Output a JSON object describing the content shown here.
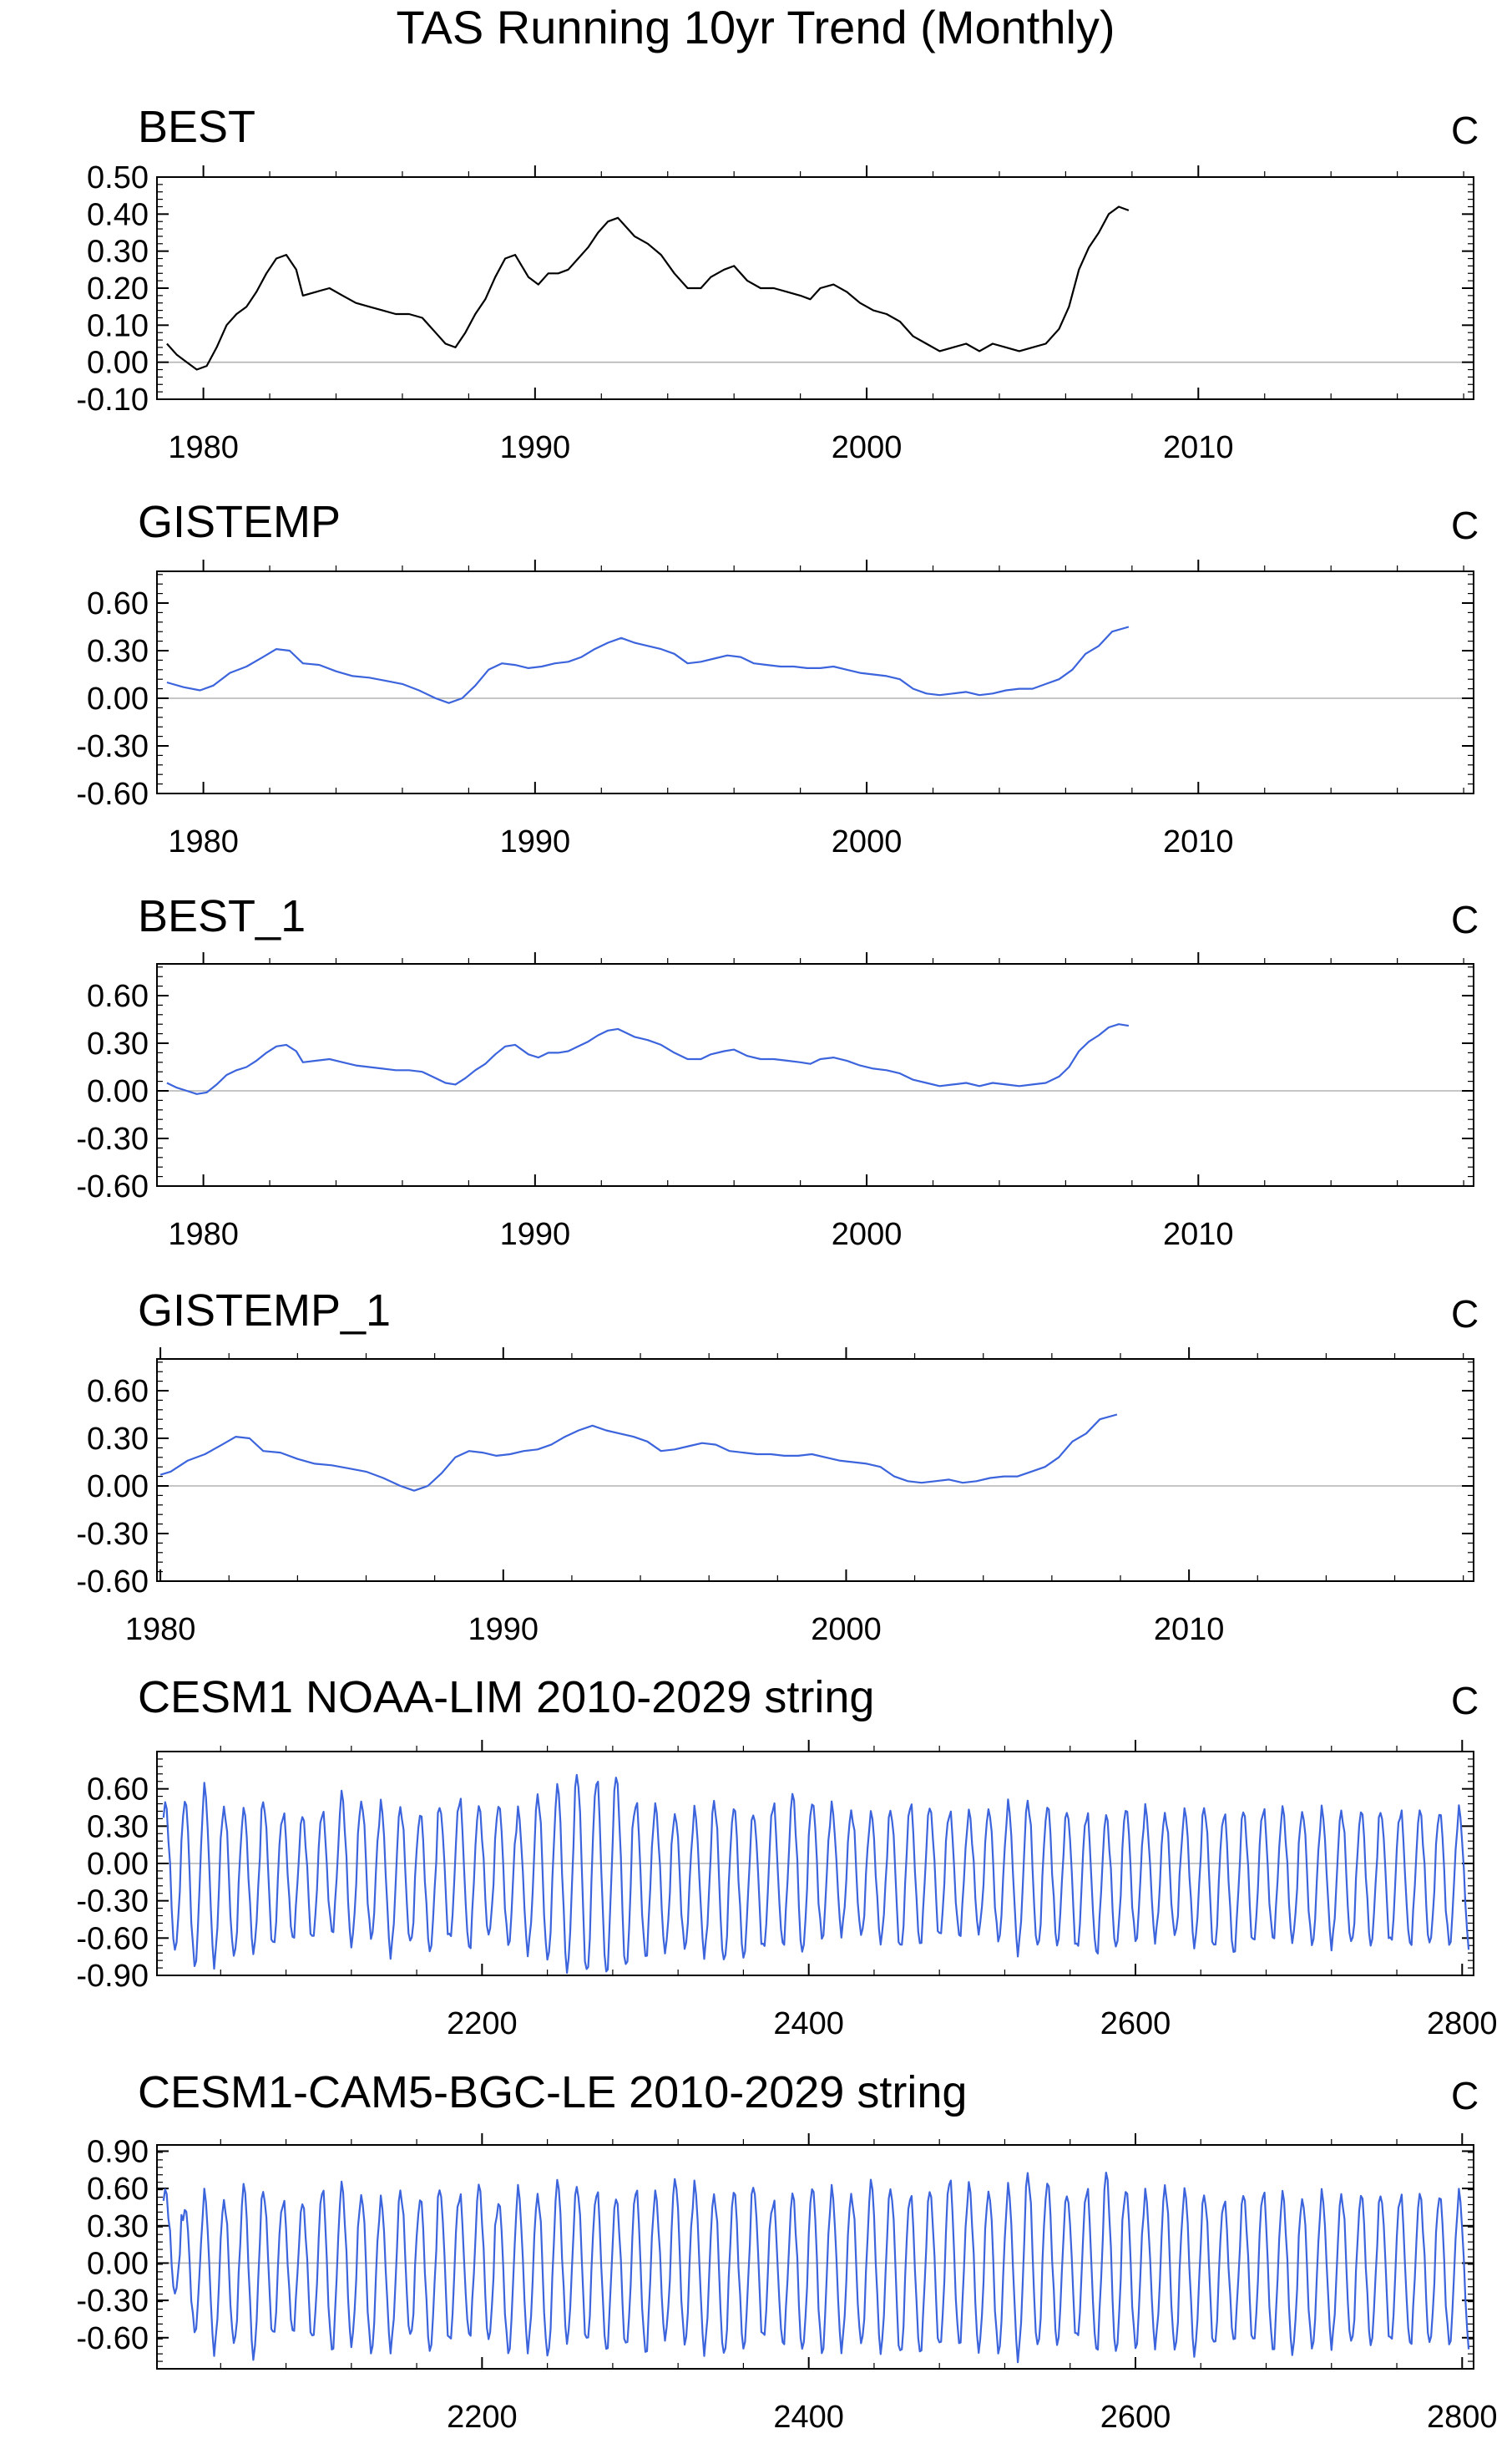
{
  "title": "TAS Running 10yr Trend (Monthly)",
  "chart_data": [
    {
      "type": "line",
      "title": "BEST",
      "units": "C",
      "color": "#000000",
      "xlim": [
        1978.6,
        2018.3
      ],
      "ylim": [
        -0.1,
        0.5
      ],
      "yticks": [
        "0.50",
        "0.40",
        "0.30",
        "0.20",
        "0.10",
        "0.00",
        "-0.10"
      ],
      "xticks": [
        "1980",
        "1990",
        "2000",
        "2010"
      ],
      "x": [
        1978.9,
        1979.2,
        1979.5,
        1979.8,
        1980.1,
        1980.4,
        1980.7,
        1981.0,
        1981.3,
        1981.6,
        1981.9,
        1982.2,
        1982.5,
        1982.8,
        1983.0,
        1983.4,
        1983.8,
        1984.2,
        1984.6,
        1985.0,
        1985.4,
        1985.8,
        1986.2,
        1986.6,
        1987.0,
        1987.3,
        1987.6,
        1987.9,
        1988.2,
        1988.5,
        1988.8,
        1989.1,
        1989.4,
        1989.8,
        1990.1,
        1990.4,
        1990.7,
        1991.0,
        1991.3,
        1991.6,
        1991.9,
        1992.2,
        1992.5,
        1992.8,
        1993.0,
        1993.4,
        1993.8,
        1994.2,
        1994.6,
        1995.0,
        1995.3,
        1995.7,
        1996.0,
        1996.4,
        1996.8,
        1997.2,
        1997.6,
        1998.0,
        1998.3,
        1998.6,
        1999.0,
        1999.4,
        1999.8,
        2000.2,
        2000.6,
        2001.0,
        2001.4,
        2001.8,
        2002.2,
        2002.6,
        2003.0,
        2003.4,
        2003.8,
        2004.2,
        2004.6,
        2005.0,
        2005.4,
        2005.8,
        2006.1,
        2006.4,
        2006.7,
        2007.0,
        2007.3,
        2007.6,
        2007.9
      ],
      "values": [
        0.05,
        0.02,
        0.0,
        -0.02,
        -0.01,
        0.04,
        0.1,
        0.13,
        0.15,
        0.19,
        0.24,
        0.28,
        0.29,
        0.25,
        0.18,
        0.19,
        0.2,
        0.18,
        0.16,
        0.15,
        0.14,
        0.13,
        0.13,
        0.12,
        0.08,
        0.05,
        0.04,
        0.08,
        0.13,
        0.17,
        0.23,
        0.28,
        0.29,
        0.23,
        0.21,
        0.24,
        0.24,
        0.25,
        0.28,
        0.31,
        0.35,
        0.38,
        0.39,
        0.36,
        0.34,
        0.32,
        0.29,
        0.24,
        0.2,
        0.2,
        0.23,
        0.25,
        0.26,
        0.22,
        0.2,
        0.2,
        0.19,
        0.18,
        0.17,
        0.2,
        0.21,
        0.19,
        0.16,
        0.14,
        0.13,
        0.11,
        0.07,
        0.05,
        0.03,
        0.04,
        0.05,
        0.03,
        0.05,
        0.04,
        0.03,
        0.04,
        0.05,
        0.09,
        0.15,
        0.25,
        0.31,
        0.35,
        0.4,
        0.42,
        0.41
      ]
    },
    {
      "type": "line",
      "title": "GISTEMP",
      "units": "C",
      "color": "#3c64dc",
      "xlim": [
        1978.6,
        2018.3
      ],
      "ylim": [
        -0.6,
        0.8
      ],
      "yticks": [
        "0.60",
        "0.30",
        "0.00",
        "-0.30",
        "-0.60"
      ],
      "xticks": [
        "1980",
        "1990",
        "2000",
        "2010"
      ],
      "x": [
        1978.9,
        1979.4,
        1979.9,
        1980.3,
        1980.8,
        1981.3,
        1981.8,
        1982.2,
        1982.6,
        1983.0,
        1983.5,
        1984.0,
        1984.5,
        1985.0,
        1985.5,
        1986.0,
        1986.5,
        1987.0,
        1987.4,
        1987.8,
        1988.2,
        1988.6,
        1989.0,
        1989.4,
        1989.8,
        1990.2,
        1990.6,
        1991.0,
        1991.4,
        1991.8,
        1992.2,
        1992.6,
        1993.0,
        1993.4,
        1993.8,
        1994.2,
        1994.6,
        1995.0,
        1995.4,
        1995.8,
        1996.2,
        1996.6,
        1997.0,
        1997.4,
        1997.8,
        1998.2,
        1998.6,
        1999.0,
        1999.4,
        1999.8,
        2000.2,
        2000.6,
        2001.0,
        2001.4,
        2001.8,
        2002.2,
        2002.6,
        2003.0,
        2003.4,
        2003.8,
        2004.2,
        2004.6,
        2005.0,
        2005.4,
        2005.8,
        2006.2,
        2006.6,
        2007.0,
        2007.4,
        2007.9
      ],
      "values": [
        0.1,
        0.07,
        0.05,
        0.08,
        0.16,
        0.2,
        0.26,
        0.31,
        0.3,
        0.22,
        0.21,
        0.17,
        0.14,
        0.13,
        0.11,
        0.09,
        0.05,
        0.0,
        -0.03,
        0.0,
        0.08,
        0.18,
        0.22,
        0.21,
        0.19,
        0.2,
        0.22,
        0.23,
        0.26,
        0.31,
        0.35,
        0.38,
        0.35,
        0.33,
        0.31,
        0.28,
        0.22,
        0.23,
        0.25,
        0.27,
        0.26,
        0.22,
        0.21,
        0.2,
        0.2,
        0.19,
        0.19,
        0.2,
        0.18,
        0.16,
        0.15,
        0.14,
        0.12,
        0.06,
        0.03,
        0.02,
        0.03,
        0.04,
        0.02,
        0.03,
        0.05,
        0.06,
        0.06,
        0.09,
        0.12,
        0.18,
        0.28,
        0.33,
        0.42,
        0.45
      ]
    },
    {
      "type": "line",
      "title": "BEST_1",
      "units": "C",
      "color": "#3c64dc",
      "xlim": [
        1978.6,
        2018.3
      ],
      "ylim": [
        -0.6,
        0.8
      ],
      "yticks": [
        "0.60",
        "0.30",
        "0.00",
        "-0.30",
        "-0.60"
      ],
      "xticks": [
        "1980",
        "1990",
        "2000",
        "2010"
      ],
      "x": [
        1978.9,
        1979.2,
        1979.5,
        1979.8,
        1980.1,
        1980.4,
        1980.7,
        1981.0,
        1981.3,
        1981.6,
        1981.9,
        1982.2,
        1982.5,
        1982.8,
        1983.0,
        1983.4,
        1983.8,
        1984.2,
        1984.6,
        1985.0,
        1985.4,
        1985.8,
        1986.2,
        1986.6,
        1987.0,
        1987.3,
        1987.6,
        1987.9,
        1988.2,
        1988.5,
        1988.8,
        1989.1,
        1989.4,
        1989.8,
        1990.1,
        1990.4,
        1990.7,
        1991.0,
        1991.3,
        1991.6,
        1991.9,
        1992.2,
        1992.5,
        1992.8,
        1993.0,
        1993.4,
        1993.8,
        1994.2,
        1994.6,
        1995.0,
        1995.3,
        1995.7,
        1996.0,
        1996.4,
        1996.8,
        1997.2,
        1997.6,
        1998.0,
        1998.3,
        1998.6,
        1999.0,
        1999.4,
        1999.8,
        2000.2,
        2000.6,
        2001.0,
        2001.4,
        2001.8,
        2002.2,
        2002.6,
        2003.0,
        2003.4,
        2003.8,
        2004.2,
        2004.6,
        2005.0,
        2005.4,
        2005.8,
        2006.1,
        2006.4,
        2006.7,
        2007.0,
        2007.3,
        2007.6,
        2007.9
      ],
      "values": [
        0.05,
        0.02,
        0.0,
        -0.02,
        -0.01,
        0.04,
        0.1,
        0.13,
        0.15,
        0.19,
        0.24,
        0.28,
        0.29,
        0.25,
        0.18,
        0.19,
        0.2,
        0.18,
        0.16,
        0.15,
        0.14,
        0.13,
        0.13,
        0.12,
        0.08,
        0.05,
        0.04,
        0.08,
        0.13,
        0.17,
        0.23,
        0.28,
        0.29,
        0.23,
        0.21,
        0.24,
        0.24,
        0.25,
        0.28,
        0.31,
        0.35,
        0.38,
        0.39,
        0.36,
        0.34,
        0.32,
        0.29,
        0.24,
        0.2,
        0.2,
        0.23,
        0.25,
        0.26,
        0.22,
        0.2,
        0.2,
        0.19,
        0.18,
        0.17,
        0.2,
        0.21,
        0.19,
        0.16,
        0.14,
        0.13,
        0.11,
        0.07,
        0.05,
        0.03,
        0.04,
        0.05,
        0.03,
        0.05,
        0.04,
        0.03,
        0.04,
        0.05,
        0.09,
        0.15,
        0.25,
        0.31,
        0.35,
        0.4,
        0.42,
        0.41
      ]
    },
    {
      "type": "line",
      "title": "GISTEMP_1",
      "units": "C",
      "color": "#3c64dc",
      "xlim": [
        1979.9,
        2018.3
      ],
      "ylim": [
        -0.6,
        0.8
      ],
      "yticks": [
        "0.60",
        "0.30",
        "0.00",
        "-0.30",
        "-0.60"
      ],
      "xticks": [
        "1980",
        "1990",
        "2000",
        "2010"
      ],
      "x": [
        1980.0,
        1980.3,
        1980.8,
        1981.3,
        1981.8,
        1982.2,
        1982.6,
        1983.0,
        1983.5,
        1984.0,
        1984.5,
        1985.0,
        1985.5,
        1986.0,
        1986.5,
        1987.0,
        1987.4,
        1987.8,
        1988.2,
        1988.6,
        1989.0,
        1989.4,
        1989.8,
        1990.2,
        1990.6,
        1991.0,
        1991.4,
        1991.8,
        1992.2,
        1992.6,
        1993.0,
        1993.4,
        1993.8,
        1994.2,
        1994.6,
        1995.0,
        1995.4,
        1995.8,
        1996.2,
        1996.6,
        1997.0,
        1997.4,
        1997.8,
        1998.2,
        1998.6,
        1999.0,
        1999.4,
        1999.8,
        2000.2,
        2000.6,
        2001.0,
        2001.4,
        2001.8,
        2002.2,
        2002.6,
        2003.0,
        2003.4,
        2003.8,
        2004.2,
        2004.6,
        2005.0,
        2005.4,
        2005.8,
        2006.2,
        2006.6,
        2007.0,
        2007.4,
        2007.9
      ],
      "values": [
        0.07,
        0.09,
        0.16,
        0.2,
        0.26,
        0.31,
        0.3,
        0.22,
        0.21,
        0.17,
        0.14,
        0.13,
        0.11,
        0.09,
        0.05,
        0.0,
        -0.03,
        0.0,
        0.08,
        0.18,
        0.22,
        0.21,
        0.19,
        0.2,
        0.22,
        0.23,
        0.26,
        0.31,
        0.35,
        0.38,
        0.35,
        0.33,
        0.31,
        0.28,
        0.22,
        0.23,
        0.25,
        0.27,
        0.26,
        0.22,
        0.21,
        0.2,
        0.2,
        0.19,
        0.19,
        0.2,
        0.18,
        0.16,
        0.15,
        0.14,
        0.12,
        0.06,
        0.03,
        0.02,
        0.03,
        0.04,
        0.02,
        0.03,
        0.05,
        0.06,
        0.06,
        0.09,
        0.12,
        0.18,
        0.28,
        0.33,
        0.42,
        0.45
      ]
    },
    {
      "type": "line",
      "title": "CESM1 NOAA-LIM 2010-2029 string",
      "units": "C",
      "color": "#3c64dc",
      "xlim": [
        2001,
        2807
      ],
      "ylim": [
        -0.9,
        0.9
      ],
      "yticks": [
        "0.60",
        "0.30",
        "0.00",
        "-0.30",
        "-0.60",
        "-0.90"
      ],
      "xticks": [
        "2200",
        "2400",
        "2600",
        "2800"
      ],
      "series_length": 800,
      "cycle_months": 12,
      "peaks": [
        0.48,
        0.52,
        0.6,
        0.45,
        0.43,
        0.5,
        0.4,
        0.38,
        0.42,
        0.55,
        0.5,
        0.47,
        0.45,
        0.4,
        0.46,
        0.52,
        0.45,
        0.48,
        0.41,
        0.55,
        0.62,
        0.72,
        0.68,
        0.7,
        0.5,
        0.45,
        0.4,
        0.42,
        0.5,
        0.45,
        0.4,
        0.48,
        0.55,
        0.5,
        0.45,
        0.42,
        0.4,
        0.43,
        0.48,
        0.45,
        0.42,
        0.4,
        0.44,
        0.47,
        0.5,
        0.46,
        0.42,
        0.4,
        0.38,
        0.45,
        0.43,
        0.4,
        0.42,
        0.45,
        0.4,
        0.42,
        0.44,
        0.43,
        0.42,
        0.42,
        0.42,
        0.42,
        0.42,
        0.42,
        0.42,
        0.42,
        0.42
      ],
      "troughs": [
        -0.7,
        -0.82,
        -0.8,
        -0.75,
        -0.7,
        -0.68,
        -0.6,
        -0.62,
        -0.55,
        -0.65,
        -0.6,
        -0.72,
        -0.65,
        -0.7,
        -0.62,
        -0.68,
        -0.58,
        -0.65,
        -0.7,
        -0.78,
        -0.85,
        -0.9,
        -0.88,
        -0.85,
        -0.75,
        -0.7,
        -0.68,
        -0.72,
        -0.8,
        -0.75,
        -0.7,
        -0.65,
        -0.72,
        -0.6,
        -0.55,
        -0.58,
        -0.62,
        -0.7,
        -0.65,
        -0.6,
        -0.58,
        -0.55,
        -0.62,
        -0.7,
        -0.68,
        -0.65,
        -0.7,
        -0.72,
        -0.68,
        -0.62,
        -0.6,
        -0.58,
        -0.65,
        -0.7,
        -0.72,
        -0.65,
        -0.6,
        -0.62,
        -0.65,
        -0.65,
        -0.65,
        -0.65,
        -0.65,
        -0.65,
        -0.65,
        -0.65,
        -0.65
      ]
    },
    {
      "type": "line",
      "title": "CESM1-CAM5-BGC-LE 2010-2029 string",
      "units": "C",
      "color": "#3c64dc",
      "xlim": [
        2001,
        2807
      ],
      "ylim": [
        -0.85,
        0.95
      ],
      "yticks": [
        "0.90",
        "0.60",
        "0.30",
        "0.00",
        "-0.30",
        "-0.60"
      ],
      "xticks": [
        "2200",
        "2400",
        "2600",
        "2800"
      ],
      "series_length": 800,
      "cycle_months": 12,
      "peaks": [
        0.58,
        0.45,
        0.55,
        0.5,
        0.62,
        0.58,
        0.5,
        0.48,
        0.6,
        0.62,
        0.55,
        0.5,
        0.58,
        0.52,
        0.6,
        0.55,
        0.62,
        0.5,
        0.58,
        0.55,
        0.65,
        0.62,
        0.58,
        0.52,
        0.6,
        0.55,
        0.68,
        0.62,
        0.55,
        0.58,
        0.62,
        0.5,
        0.55,
        0.62,
        0.58,
        0.55,
        0.65,
        0.6,
        0.55,
        0.58,
        0.68,
        0.62,
        0.58,
        0.6,
        0.72,
        0.65,
        0.55,
        0.6,
        0.72,
        0.6,
        0.55,
        0.62,
        0.58,
        0.55,
        0.5,
        0.55,
        0.58,
        0.55,
        0.52,
        0.55,
        0.55,
        0.55,
        0.55,
        0.55,
        0.55,
        0.55,
        0.55
      ],
      "troughs": [
        -0.25,
        -0.55,
        -0.7,
        -0.65,
        -0.75,
        -0.6,
        -0.55,
        -0.62,
        -0.7,
        -0.65,
        -0.72,
        -0.68,
        -0.6,
        -0.7,
        -0.65,
        -0.58,
        -0.62,
        -0.72,
        -0.68,
        -0.75,
        -0.62,
        -0.65,
        -0.7,
        -0.68,
        -0.72,
        -0.6,
        -0.65,
        -0.7,
        -0.75,
        -0.68,
        -0.62,
        -0.65,
        -0.7,
        -0.72,
        -0.68,
        -0.65,
        -0.7,
        -0.75,
        -0.72,
        -0.68,
        -0.65,
        -0.7,
        -0.72,
        -0.75,
        -0.68,
        -0.65,
        -0.62,
        -0.7,
        -0.72,
        -0.68,
        -0.65,
        -0.7,
        -0.72,
        -0.68,
        -0.62,
        -0.65,
        -0.7,
        -0.72,
        -0.68,
        -0.65,
        -0.65,
        -0.65,
        -0.65,
        -0.65,
        -0.65,
        -0.65,
        -0.65
      ]
    }
  ]
}
